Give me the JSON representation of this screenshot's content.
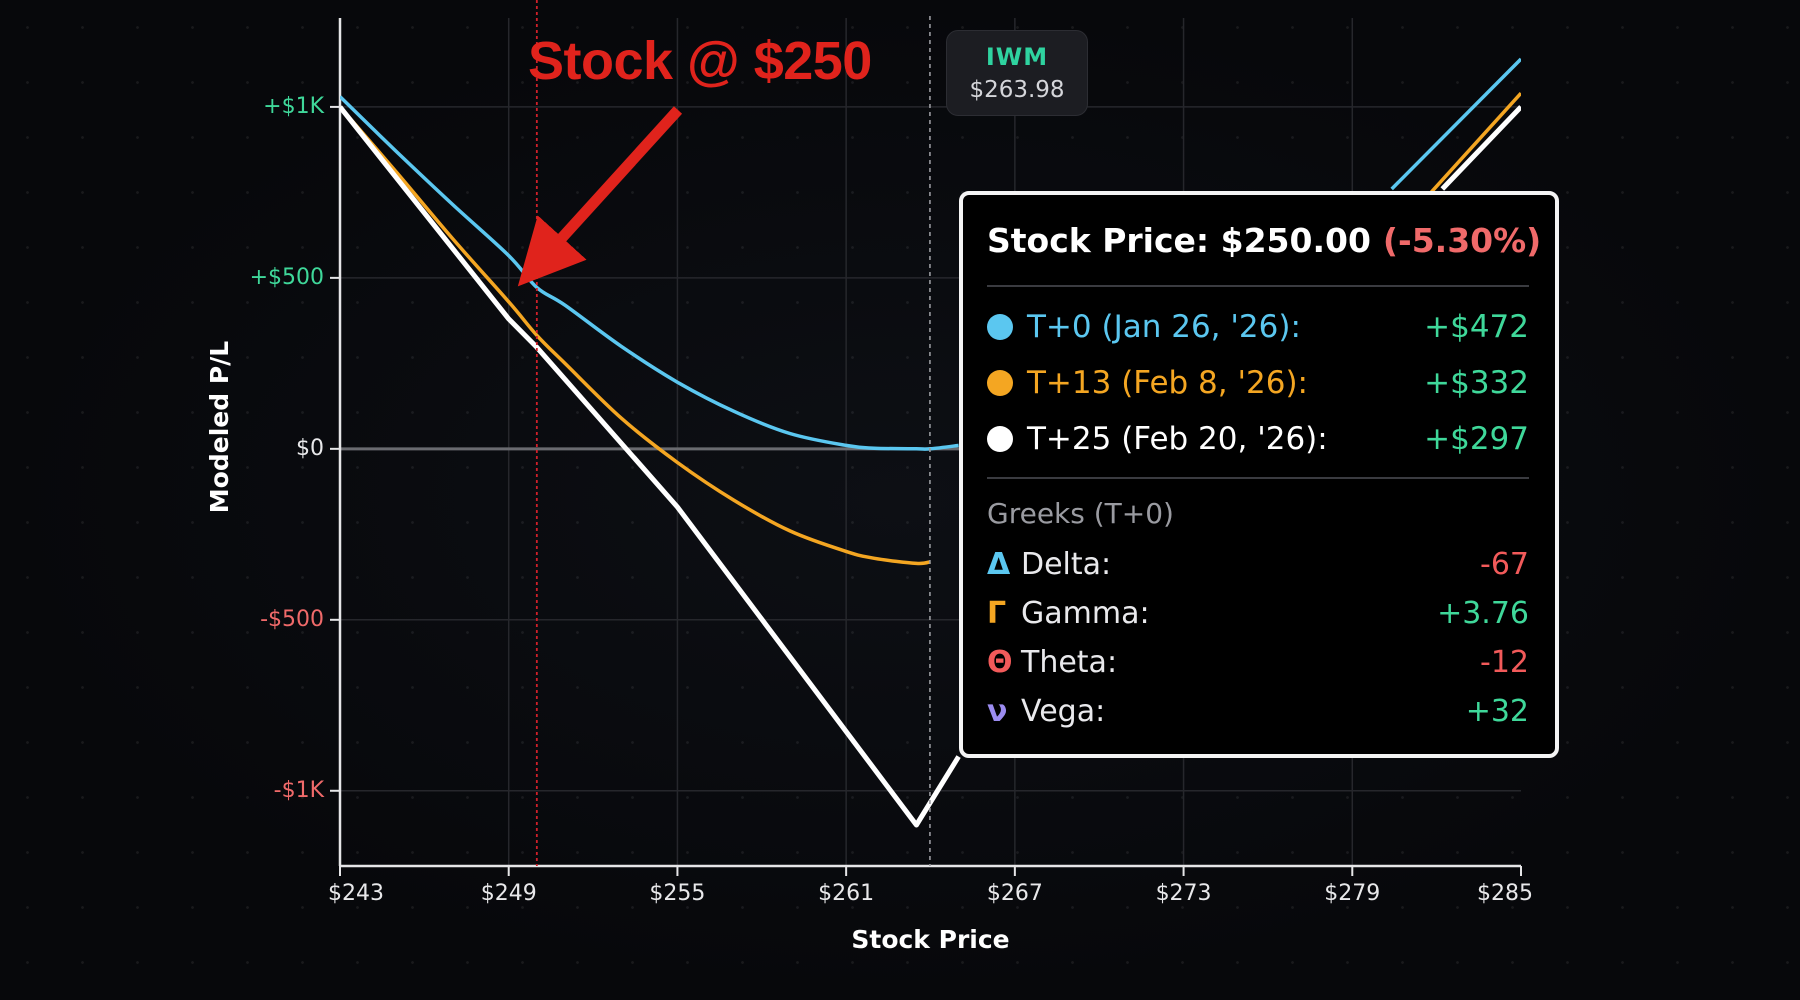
{
  "colors": {
    "t0": "#5bc7f0",
    "t13": "#f4a622",
    "t25": "#ffffff",
    "annotation": "#e0231c",
    "positive": "#3fd89a",
    "negative": "#f06a6a",
    "zero_line": "#6a6b70",
    "grid": "#26272c"
  },
  "chart_data": {
    "type": "line",
    "xlabel": "Stock Price",
    "ylabel": "Modeled P/L",
    "xlim": [
      243,
      285
    ],
    "ylim": [
      -1220,
      1260
    ],
    "grid": true,
    "x_ticks": [
      {
        "value": 243,
        "label": "$243"
      },
      {
        "value": 249,
        "label": "$249"
      },
      {
        "value": 255,
        "label": "$255"
      },
      {
        "value": 261,
        "label": "$261"
      },
      {
        "value": 267,
        "label": "$267"
      },
      {
        "value": 273,
        "label": "$273"
      },
      {
        "value": 279,
        "label": "$279"
      },
      {
        "value": 285,
        "label": "$285"
      }
    ],
    "y_ticks": [
      {
        "value": 1000,
        "label": "+$1K"
      },
      {
        "value": 500,
        "label": "+$500"
      },
      {
        "value": 0,
        "label": "$0"
      },
      {
        "value": -500,
        "label": "-$500"
      },
      {
        "value": -1000,
        "label": "-$1K"
      }
    ],
    "series": [
      {
        "name": "T+0 (Jan 26, '26)",
        "x": [
          243,
          245,
          247,
          249,
          250,
          251,
          253,
          255,
          257,
          259,
          261,
          262,
          263.5,
          264,
          265
        ],
        "y": [
          1030,
          870,
          715,
          565,
          472,
          420,
          300,
          195,
          110,
          45,
          10,
          2,
          0,
          0,
          10
        ]
      },
      {
        "name": "T+13 (Feb 8, '26)",
        "x": [
          243,
          245,
          247,
          249,
          250,
          251,
          253,
          255,
          257,
          259,
          261,
          262,
          263.5,
          264
        ],
        "y": [
          1000,
          810,
          615,
          430,
          332,
          250,
          90,
          -40,
          -150,
          -240,
          -300,
          -320,
          -335,
          -330
        ]
      },
      {
        "name": "T+25 (Feb 20, '26)",
        "x": [
          243,
          249,
          250,
          255,
          263.5,
          265
        ],
        "y": [
          1000,
          380,
          297,
          -170,
          -1100,
          -900
        ]
      }
    ],
    "right_segments": [
      {
        "series": "T+0 (Jan 26, '26)",
        "x": [
          280.4,
          285
        ],
        "y": [
          760,
          1140
        ]
      },
      {
        "series": "T+13 (Feb 8, '26)",
        "x": [
          281.8,
          285
        ],
        "y": [
          750,
          1040
        ]
      },
      {
        "series": "T+25 (Feb 20, '26)",
        "x": [
          282.2,
          285
        ],
        "y": [
          760,
          1000
        ]
      }
    ],
    "markers": {
      "selected_price": 250,
      "current_price": 263.98
    }
  },
  "annotation": {
    "text": "Stock @ $250"
  },
  "ticker": {
    "symbol": "IWM",
    "price": "$263.98"
  },
  "tooltip": {
    "header_label": "Stock Price: $250.00",
    "header_change": "(-5.30%)",
    "series": [
      {
        "label": "T+0 (Jan 26, '26):",
        "value": "+$472",
        "color": "#5bc7f0"
      },
      {
        "label": "T+13 (Feb 8, '26):",
        "value": "+$332",
        "color": "#f4a622"
      },
      {
        "label": "T+25 (Feb 20, '26):",
        "value": "+$297",
        "color": "#ffffff"
      }
    ],
    "greeks_title": "Greeks (T+0)",
    "greeks": [
      {
        "symbol": "Δ",
        "name": "Delta:",
        "value": "-67",
        "symbol_color": "#5bc7f0",
        "value_sign": "negative"
      },
      {
        "symbol": "Γ",
        "name": "Gamma:",
        "value": "+3.76",
        "symbol_color": "#f4a622",
        "value_sign": "positive"
      },
      {
        "symbol": "Θ",
        "name": "Theta:",
        "value": "-12",
        "symbol_color": "#f25a5a",
        "value_sign": "negative"
      },
      {
        "symbol": "ν",
        "name": "Vega:",
        "value": "+32",
        "symbol_color": "#9c8cf0",
        "value_sign": "positive"
      }
    ]
  }
}
